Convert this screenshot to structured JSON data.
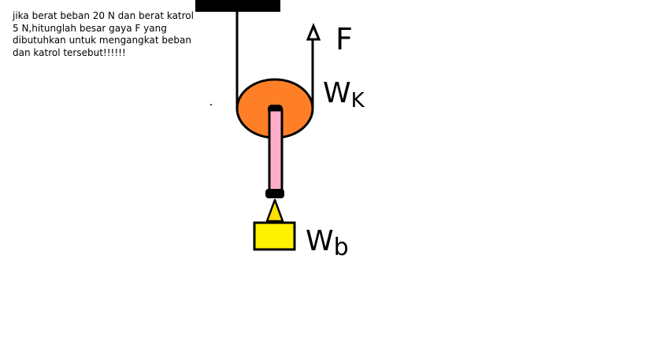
{
  "question": {
    "text": "jika berat beban 20 N dan berat katrol 5 N,hitunglah besar gaya F yang dibutuhkan untuk mengangkat beban dan katrol tersebut!!!!!!"
  },
  "labels": {
    "force": "F",
    "pulley_weight_main": "W",
    "pulley_weight_sub": "K",
    "load_weight_main": "W",
    "load_weight_sub": "b"
  },
  "colors": {
    "pulley": "#ff7f27",
    "rod": "#ffaec9",
    "hook": "#ffe000",
    "load": "#fff200",
    "outline": "#000000",
    "ceiling": "#000000"
  }
}
